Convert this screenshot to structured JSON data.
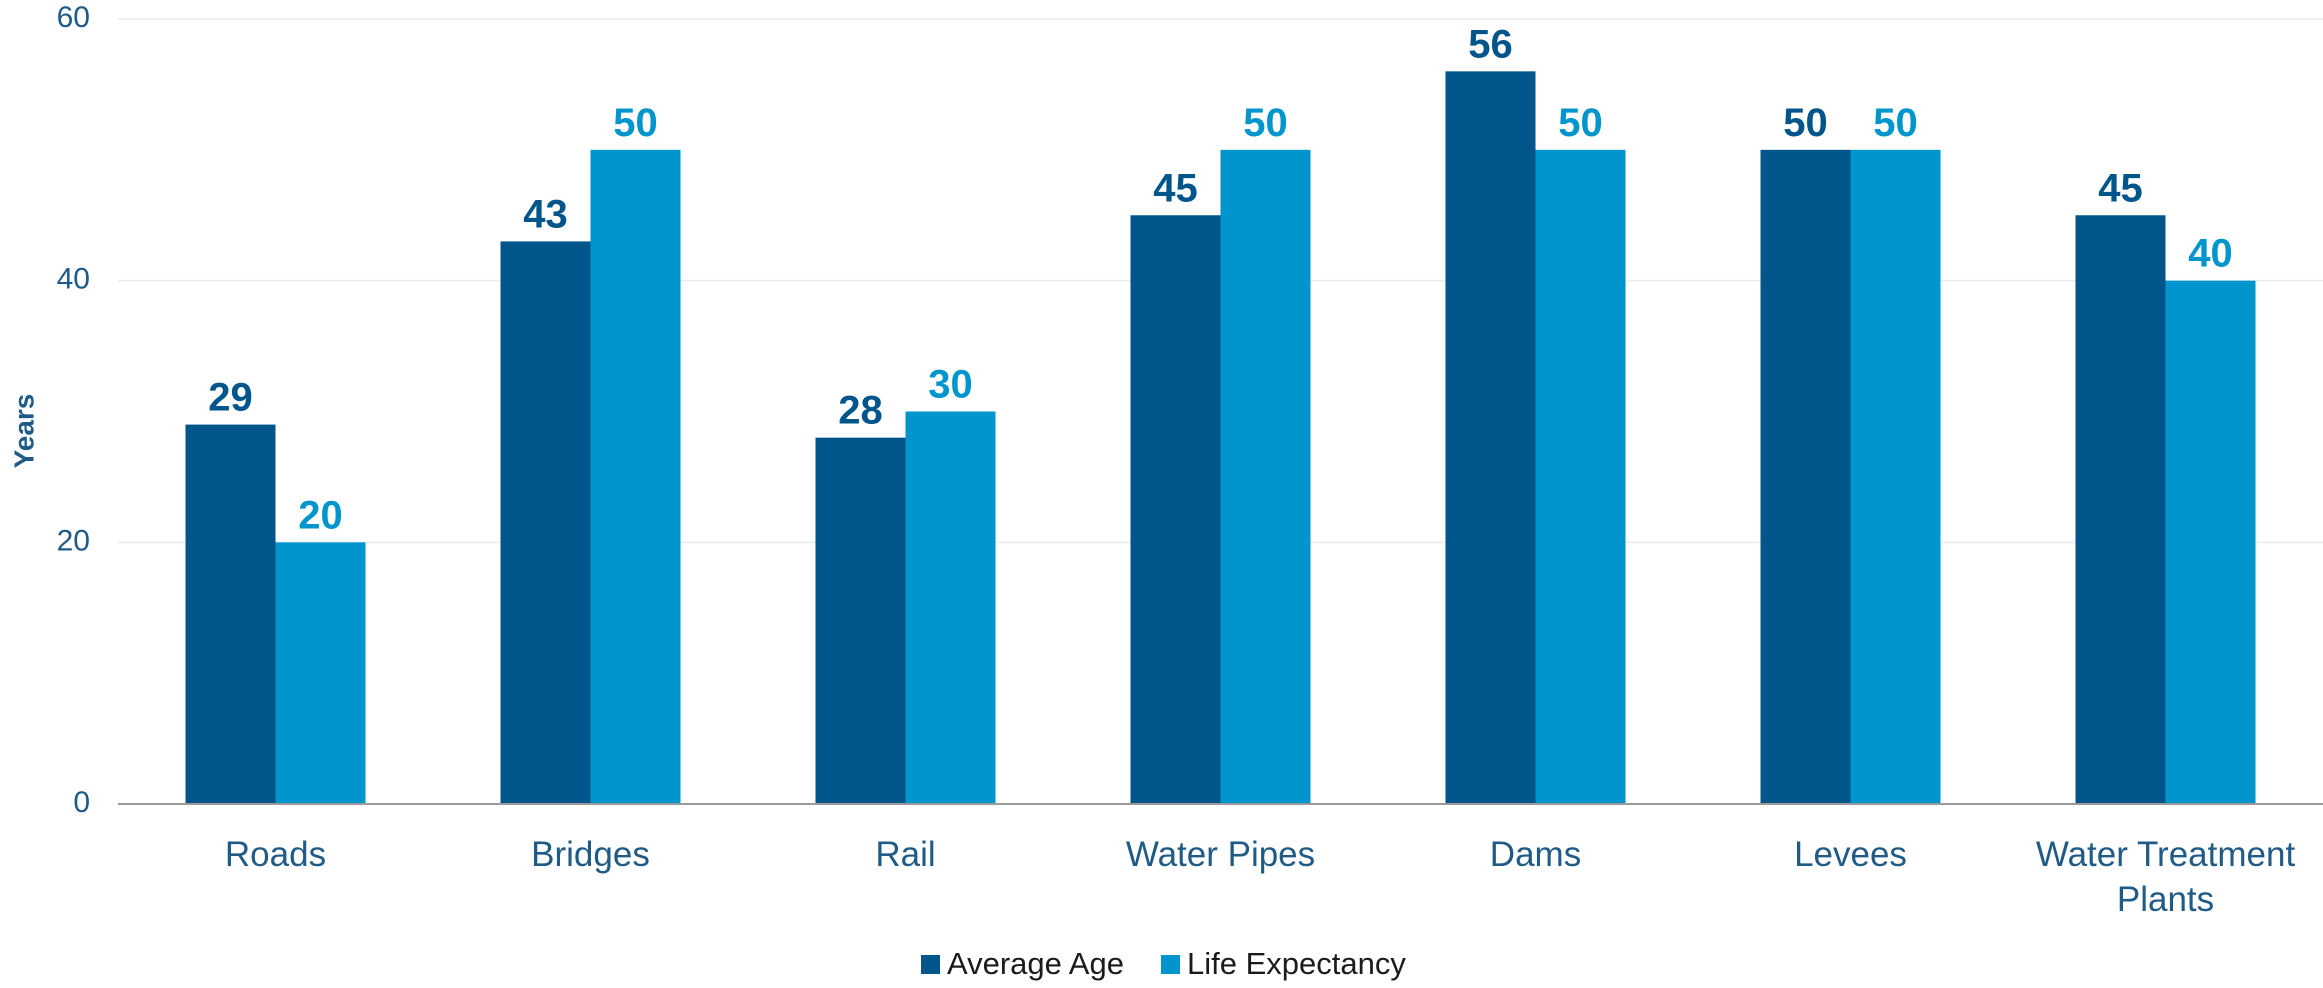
{
  "chart_data": {
    "type": "bar",
    "title": "",
    "xlabel": "",
    "ylabel": "Years",
    "ylim": [
      0,
      60
    ],
    "yticks": [
      0,
      20,
      40,
      60
    ],
    "grid": true,
    "legend_position": "bottom-center",
    "categories": [
      [
        "Roads"
      ],
      [
        "Bridges"
      ],
      [
        "Rail"
      ],
      [
        "Water Pipes"
      ],
      [
        "Dams"
      ],
      [
        "Levees"
      ],
      [
        "Water Treatment",
        "Plants"
      ]
    ],
    "series": [
      {
        "name": "Average Age",
        "color": "#00558a",
        "values": [
          29,
          43,
          28,
          45,
          56,
          50,
          45
        ]
      },
      {
        "name": "Life Expectancy",
        "color": "#0096cd",
        "values": [
          20,
          50,
          30,
          50,
          50,
          50,
          40
        ]
      }
    ],
    "grid_color": "#e9ecef",
    "axis_color": "#9a9a9a",
    "text_color": "#1f5b86"
  }
}
